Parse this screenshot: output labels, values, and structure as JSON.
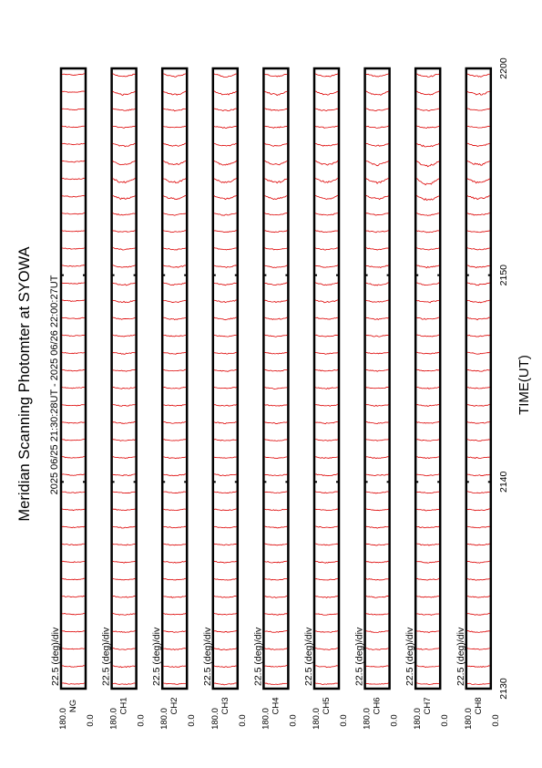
{
  "chart_data": {
    "type": "line",
    "title": "Meridian Scanning Photomter at SYOWA",
    "time_range_label": "2025 06/25 21:30:28UT - 2025 06/26 22:00:27UT",
    "xlabel": "TIME(UT)",
    "x_ticks": [
      "2130",
      "2140",
      "2150",
      "2200"
    ],
    "xlim": [
      "2130",
      "2200"
    ],
    "scale_label": "22.5 (deg)/div",
    "ylim": [
      0.0,
      180.0
    ],
    "y_tick_labels": [
      "0.0",
      "180.0"
    ],
    "panels": [
      {
        "channel": "NG",
        "activity": "quiet"
      },
      {
        "channel": "CH1",
        "activity": "enhancement near 2155-2158"
      },
      {
        "channel": "CH2",
        "activity": "enhancement near 2155-2158"
      },
      {
        "channel": "CH3",
        "activity": "enhancement near 2155-2158"
      },
      {
        "channel": "CH4",
        "activity": "enhancement near 2155-2158"
      },
      {
        "channel": "CH5",
        "activity": "enhancement near 2155-2158"
      },
      {
        "channel": "CH6",
        "activity": "enhancement near 2155-2158"
      },
      {
        "channel": "CH7",
        "activity": "strong enhancement near 2155-2158"
      },
      {
        "channel": "CH8",
        "activity": "enhancement near 2155-2158"
      }
    ],
    "trace_color": "#dd0000"
  }
}
